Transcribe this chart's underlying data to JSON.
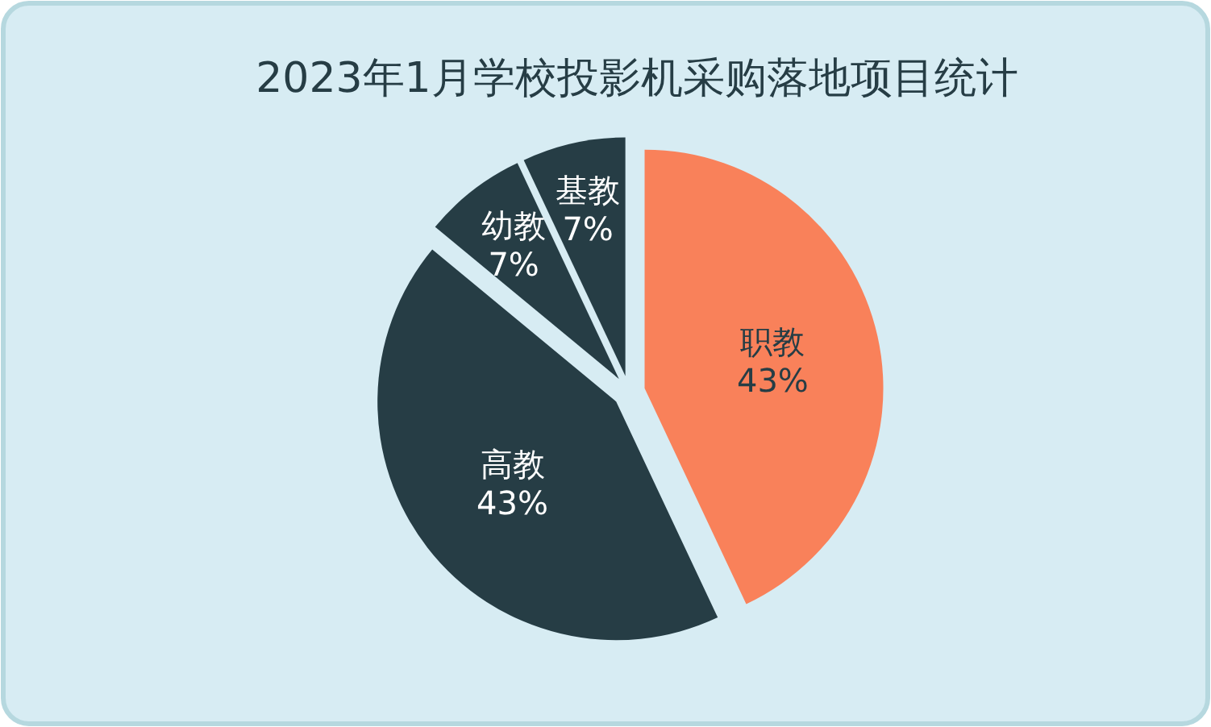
{
  "chart_data": {
    "type": "pie",
    "title": "2023年1月学校投影机采购落地项目统计",
    "categories": [
      "职教",
      "高教",
      "幼教",
      "基教"
    ],
    "values": [
      43,
      43,
      7,
      7
    ],
    "colors": [
      "#f9815a",
      "#263d45",
      "#263d45",
      "#263d45"
    ],
    "value_labels": [
      "43%",
      "43%",
      "7%",
      "7%"
    ]
  }
}
